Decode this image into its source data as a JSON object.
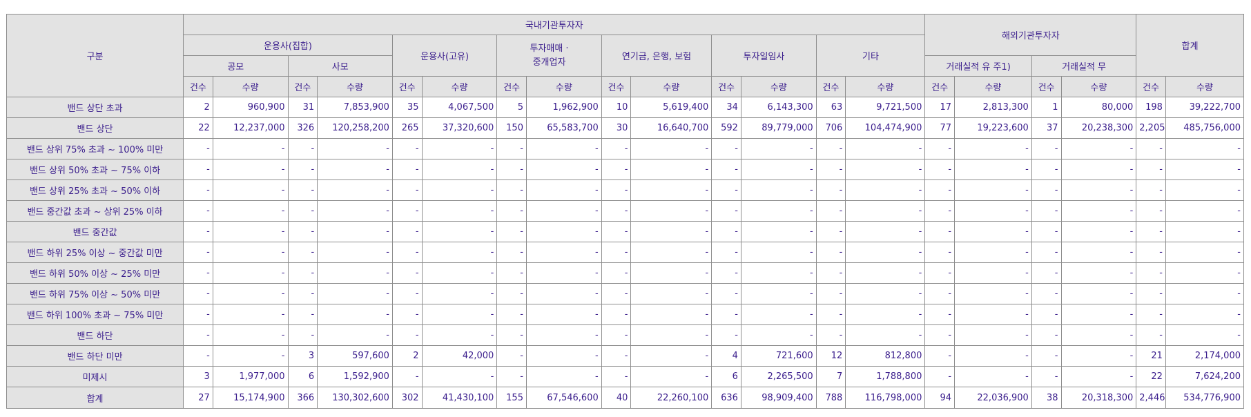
{
  "header": {
    "category": "구분",
    "domestic": "국내기관투자자",
    "foreign": "해외기관투자자",
    "total": "합계",
    "collective": "운용사(집합)",
    "public": "공모",
    "private": "사모",
    "proprietary": "운용사(고유)",
    "broker_line1": "투자매매 ·",
    "broker_line2": "중개업자",
    "pension": "연기금, 은행, 보험",
    "discretionary": "투자일임사",
    "other": "기타",
    "record_yes": "거래실적 유 주1)",
    "record_no": "거래실적 무",
    "count": "건수",
    "quantity": "수량"
  },
  "rows": [
    {
      "label": "밴드 상단 초과",
      "cells": [
        "2",
        "960,900",
        "31",
        "7,853,900",
        "35",
        "4,067,500",
        "5",
        "1,962,900",
        "10",
        "5,619,400",
        "34",
        "6,143,300",
        "63",
        "9,721,500",
        "17",
        "2,813,300",
        "1",
        "80,000",
        "198",
        "39,222,700"
      ]
    },
    {
      "label": "밴드 상단",
      "cells": [
        "22",
        "12,237,000",
        "326",
        "120,258,200",
        "265",
        "37,320,600",
        "150",
        "65,583,700",
        "30",
        "16,640,700",
        "592",
        "89,779,000",
        "706",
        "104,474,900",
        "77",
        "19,223,600",
        "37",
        "20,238,300",
        "2,205",
        "485,756,000"
      ]
    },
    {
      "label": "밴드 상위 75% 초과 ~ 100% 미만",
      "cells": [
        "-",
        "-",
        "-",
        "-",
        "-",
        "-",
        "-",
        "-",
        "-",
        "-",
        "-",
        "-",
        "-",
        "-",
        "-",
        "-",
        "-",
        "-",
        "-",
        "-"
      ]
    },
    {
      "label": "밴드 상위 50% 초과 ~ 75% 이하",
      "cells": [
        "-",
        "-",
        "-",
        "-",
        "-",
        "-",
        "-",
        "-",
        "-",
        "-",
        "-",
        "-",
        "-",
        "-",
        "-",
        "-",
        "-",
        "-",
        "-",
        "-"
      ]
    },
    {
      "label": "밴드 상위 25% 초과 ~ 50% 이하",
      "cells": [
        "-",
        "-",
        "-",
        "-",
        "-",
        "-",
        "-",
        "-",
        "-",
        "-",
        "-",
        "-",
        "-",
        "-",
        "-",
        "-",
        "-",
        "-",
        "-",
        "-"
      ]
    },
    {
      "label": "밴드 중간값 초과 ~ 상위 25% 이하",
      "cells": [
        "-",
        "-",
        "-",
        "-",
        "-",
        "-",
        "-",
        "-",
        "-",
        "-",
        "-",
        "-",
        "-",
        "-",
        "-",
        "-",
        "-",
        "-",
        "-",
        "-"
      ]
    },
    {
      "label": "밴드 중간값",
      "cells": [
        "-",
        "-",
        "-",
        "-",
        "-",
        "-",
        "-",
        "-",
        "-",
        "-",
        "-",
        "-",
        "-",
        "-",
        "-",
        "-",
        "-",
        "-",
        "-",
        "-"
      ]
    },
    {
      "label": "밴드 하위 25% 이상 ~ 중간값 미만",
      "cells": [
        "-",
        "-",
        "-",
        "-",
        "-",
        "-",
        "-",
        "-",
        "-",
        "-",
        "-",
        "-",
        "-",
        "-",
        "-",
        "-",
        "-",
        "-",
        "-",
        "-"
      ]
    },
    {
      "label": "밴드 하위 50% 이상 ~ 25% 미만",
      "cells": [
        "-",
        "-",
        "-",
        "-",
        "-",
        "-",
        "-",
        "-",
        "-",
        "-",
        "-",
        "-",
        "-",
        "-",
        "-",
        "-",
        "-",
        "-",
        "-",
        "-"
      ]
    },
    {
      "label": "밴드 하위 75% 이상 ~ 50% 미만",
      "cells": [
        "-",
        "-",
        "-",
        "-",
        "-",
        "-",
        "-",
        "-",
        "-",
        "-",
        "-",
        "-",
        "-",
        "-",
        "-",
        "-",
        "-",
        "-",
        "-",
        "-"
      ]
    },
    {
      "label": "밴드 하위 100% 초과 ~ 75% 미만",
      "cells": [
        "-",
        "-",
        "-",
        "-",
        "-",
        "-",
        "-",
        "-",
        "-",
        "-",
        "-",
        "-",
        "-",
        "-",
        "-",
        "-",
        "-",
        "-",
        "-",
        "-"
      ]
    },
    {
      "label": "밴드 하단",
      "cells": [
        "-",
        "-",
        "-",
        "-",
        "-",
        "-",
        "-",
        "-",
        "-",
        "-",
        "-",
        "-",
        "-",
        "-",
        "-",
        "-",
        "-",
        "-",
        "-",
        "-"
      ]
    },
    {
      "label": "밴드 하단 미만",
      "cells": [
        "-",
        "-",
        "3",
        "597,600",
        "2",
        "42,000",
        "-",
        "-",
        "-",
        "-",
        "4",
        "721,600",
        "12",
        "812,800",
        "-",
        "-",
        "-",
        "-",
        "21",
        "2,174,000"
      ]
    },
    {
      "label": "미제시",
      "cells": [
        "3",
        "1,977,000",
        "6",
        "1,592,900",
        "-",
        "-",
        "-",
        "-",
        "-",
        "-",
        "6",
        "2,265,500",
        "7",
        "1,788,800",
        "-",
        "-",
        "-",
        "-",
        "22",
        "7,624,200"
      ]
    },
    {
      "label": "합계",
      "cells": [
        "27",
        "15,174,900",
        "366",
        "130,302,600",
        "302",
        "41,430,100",
        "155",
        "67,546,600",
        "40",
        "22,260,100",
        "636",
        "98,909,400",
        "788",
        "116,798,000",
        "94",
        "22,036,900",
        "38",
        "20,318,300",
        "2,446",
        "534,776,900"
      ]
    }
  ]
}
